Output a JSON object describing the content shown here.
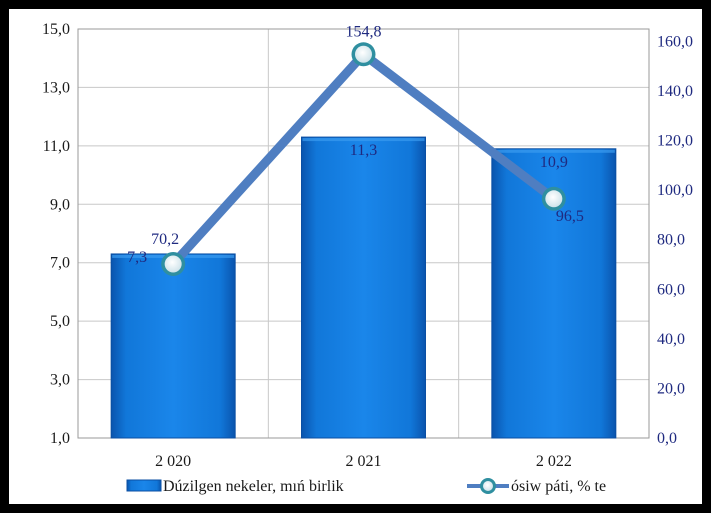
{
  "chart_data": {
    "type": "bar+line",
    "categories": [
      "2 020",
      "2 021",
      "2 022"
    ],
    "series": [
      {
        "name": "Dúzilgen nekeler, mıń birlik",
        "type": "bar",
        "axis": "left",
        "values": [
          7.3,
          11.3,
          10.9
        ],
        "labels": [
          "7,3",
          "11,3",
          "10,9"
        ]
      },
      {
        "name": "ósiw páti,   % te",
        "type": "line",
        "axis": "right",
        "values": [
          70.2,
          154.8,
          96.5
        ],
        "labels": [
          "70,2",
          "154,8",
          "96,5"
        ]
      }
    ],
    "y_left": {
      "min": 1,
      "max": 15,
      "ticks": [
        1,
        3,
        5,
        7,
        9,
        11,
        13,
        15
      ],
      "tick_labels": [
        "1,0",
        "3,0",
        "5,0",
        "7,0",
        "9,0",
        "11,0",
        "13,0",
        "15,0"
      ]
    },
    "y_right": {
      "min": 0,
      "max": 165,
      "ticks": [
        0,
        20,
        40,
        60,
        80,
        100,
        120,
        140,
        160
      ],
      "tick_labels": [
        "0,0",
        "20,0",
        "40,0",
        "60,0",
        "80,0",
        "100,0",
        "120,0",
        "140,0",
        "160,0"
      ]
    },
    "grid": true,
    "legend_position": "bottom",
    "colors": {
      "bar": "#1177d9",
      "bar_dark": "#0b4fa3",
      "line": "#4f7ec1",
      "marker_fill": "#d9e8ef",
      "marker_ring": "#2f8fa0",
      "label": "#1f2a80"
    }
  }
}
